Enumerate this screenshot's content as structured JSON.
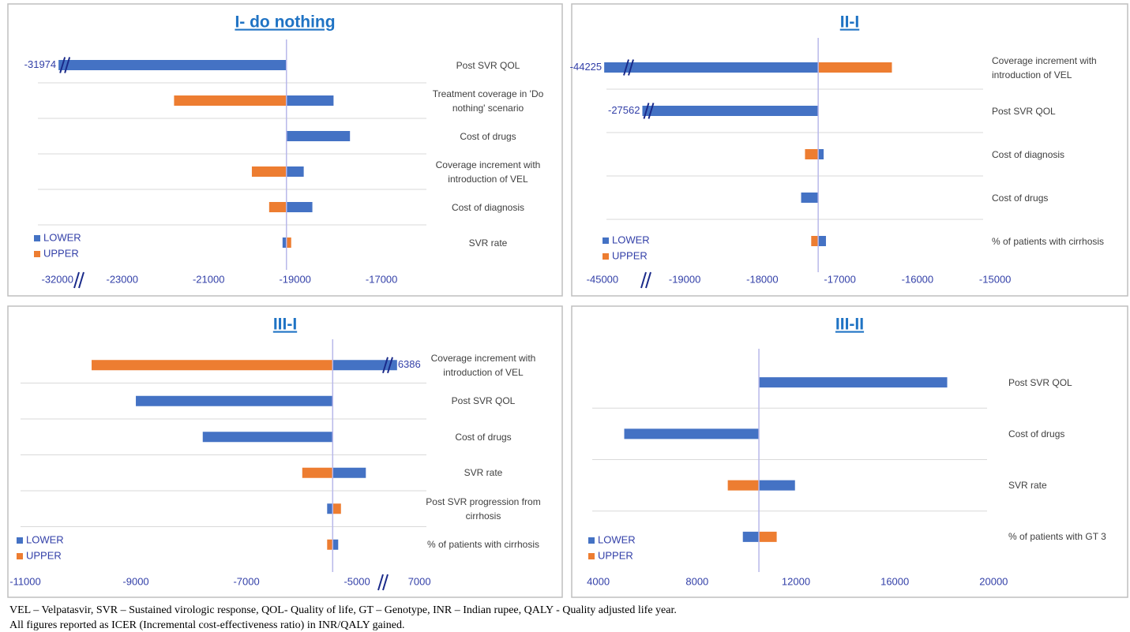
{
  "chart_data": [
    {
      "type": "tornado",
      "title": "I- do nothing",
      "categories": [
        "Post SVR QOL",
        "Treatment coverage in 'Do nothing' scenario",
        "Cost of drugs",
        "Coverage increment with introduction of VEL",
        "Cost of diagnosis",
        "SVR rate"
      ],
      "base_value": -19200,
      "series": [
        {
          "name": "LOWER",
          "color": "#4472c4",
          "values": [
            -31974,
            -18110,
            -17730,
            -18800,
            -18600,
            -19290
          ]
        },
        {
          "name": "UPPER",
          "color": "#ed7d31",
          "values": [
            null,
            -21800,
            null,
            -20000,
            -19600,
            -19090
          ]
        }
      ],
      "xlim": [
        -32600,
        -16400
      ],
      "xbreak": [
        -31500,
        -24000
      ],
      "xticks": [
        -32000,
        -23000,
        -21000,
        -19000,
        -17000
      ],
      "legend": "lower left"
    },
    {
      "type": "tornado",
      "title": "II-I",
      "categories": [
        "Coverage increment with introduction of VEL",
        "Post SVR QOL",
        "Cost of diagnosis",
        "Cost of drugs",
        "% of patients with cirrhosis"
      ],
      "base_value": -17280,
      "series": [
        {
          "name": "LOWER",
          "color": "#4472c4",
          "values": [
            -44225,
            -27562,
            -17210,
            -17500,
            -17180
          ]
        },
        {
          "name": "UPPER",
          "color": "#ed7d31",
          "values": [
            -16330,
            null,
            -17450,
            null,
            -17370
          ]
        }
      ],
      "xlim": [
        -46000,
        -14900
      ],
      "xbreak": [
        -26000,
        -19500
      ],
      "xticks": [
        -45000,
        -19000,
        -18000,
        -17000,
        -16000,
        -15000
      ],
      "legend": "lower left"
    },
    {
      "type": "tornado",
      "title": "III-I",
      "categories": [
        "Coverage increment with introduction of VEL",
        "Post SVR QOL",
        "Cost of drugs",
        "SVR rate",
        "Post SVR progression from cirrhosis",
        "% of patients with cirrhosis"
      ],
      "base_value": -5440,
      "series": [
        {
          "name": "LOWER",
          "color": "#4472c4",
          "values": [
            6386,
            -9000,
            -7790,
            -4840,
            -5540,
            -5340
          ]
        },
        {
          "name": "UPPER",
          "color": "#ed7d31",
          "values": [
            -9800,
            null,
            null,
            -5990,
            -5290,
            -5540
          ]
        }
      ],
      "xlim": [
        -11200,
        7300
      ],
      "xbreak": [
        -4530,
        6000
      ],
      "xticks": [
        -11000,
        -9000,
        -7000,
        -5000,
        7000
      ],
      "legend": "lower left"
    },
    {
      "type": "tornado",
      "title": "III-II",
      "categories": [
        "Post SVR QOL",
        "Cost of drugs",
        "SVR rate",
        "% of patients with GT 3"
      ],
      "base_value": 10500,
      "series": [
        {
          "name": "LOWER",
          "color": "#4472c4",
          "values": [
            18120,
            5050,
            11960,
            9850
          ]
        },
        {
          "name": "UPPER",
          "color": "#ed7d31",
          "values": [
            null,
            null,
            9240,
            11220
          ]
        }
      ],
      "xlim": [
        3500,
        20500
      ],
      "xticks": [
        4000,
        8000,
        12000,
        16000,
        20000
      ],
      "legend": "lower left"
    }
  ],
  "footnote": [
    "VEL – Velpatasvir, SVR – Sustained virologic response, QOL- Quality of life, GT – Genotype, INR – Indian rupee, QALY - Quality adjusted life year.",
    "All figures reported as ICER (Incremental cost-effectiveness ratio) in INR/QALY gained."
  ]
}
